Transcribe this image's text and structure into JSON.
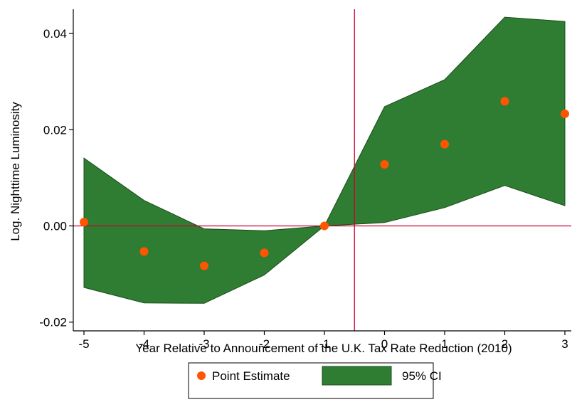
{
  "chart_data": {
    "type": "scatter",
    "title": "",
    "xlabel": "Year Relative to Announcement of the U.K. Tax Rate Reduction (2010)",
    "ylabel": "Log. Nighttime Luminosity",
    "xlim": [
      -5,
      3
    ],
    "ylim": [
      -0.022,
      0.045
    ],
    "x_ticks": [
      -5,
      -4,
      -3,
      -2,
      -1,
      0,
      1,
      2,
      3
    ],
    "x_tick_labels": [
      "-5",
      "-4",
      "-3",
      "-2",
      "-1",
      "0",
      "1",
      "2",
      "3"
    ],
    "y_ticks": [
      -0.02,
      0,
      0.02,
      0.04
    ],
    "y_tick_labels": [
      "-0.02",
      "0.00",
      "0.02",
      "0.04"
    ],
    "grid": false,
    "reference_lines": {
      "x": -0.5,
      "y": 0,
      "color": "#cc0033"
    },
    "x": [
      -5,
      -4,
      -3,
      -2,
      -1,
      0,
      1,
      2,
      3
    ],
    "series": [
      {
        "name": "Point Estimate",
        "kind": "points",
        "color": "#ff5500",
        "values": [
          0.0008,
          -0.0053,
          -0.0083,
          -0.0056,
          0.0,
          0.0128,
          0.017,
          0.0259,
          0.0233
        ]
      },
      {
        "name": "95% CI",
        "kind": "band",
        "color": "#2e7d32",
        "lower": [
          -0.0128,
          -0.016,
          -0.0161,
          -0.0102,
          0.0,
          0.0007,
          0.0038,
          0.0084,
          0.0042
        ],
        "upper": [
          0.0141,
          0.0053,
          -0.0006,
          -0.001,
          0.0,
          0.0248,
          0.0304,
          0.0434,
          0.0425
        ]
      }
    ],
    "legend": {
      "position": "bottom",
      "items": [
        "Point Estimate",
        "95% CI"
      ]
    }
  }
}
